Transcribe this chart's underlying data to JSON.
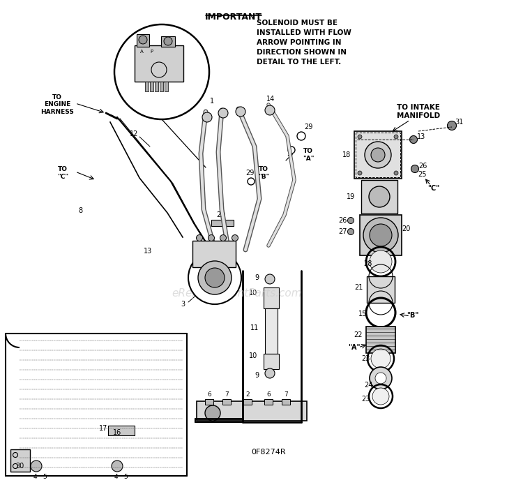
{
  "background_color": "#ffffff",
  "important_text": "IMPORTANT",
  "note_text": "SOLENOID MUST BE\nINSTALLED WITH FLOW\nARROW POINTING IN\nDIRECTION SHOWN IN\nDETAIL TO THE LEFT.",
  "diagram_label": "0F8274R",
  "watermark": "eReplacementParts.com",
  "to_engine_harness": "TO\nENGINE\nHARNESS",
  "to_intake_manifold": "TO INTAKE\nMANIFOLD",
  "to_c_left": "TO\n\"C\"",
  "to_b_top": "TO\n\"B\"",
  "to_a_top": "TO\n\"A\"",
  "label_b_right": "\"B\"",
  "label_a_right": "\"A\"",
  "label_c_right": "\"C\""
}
